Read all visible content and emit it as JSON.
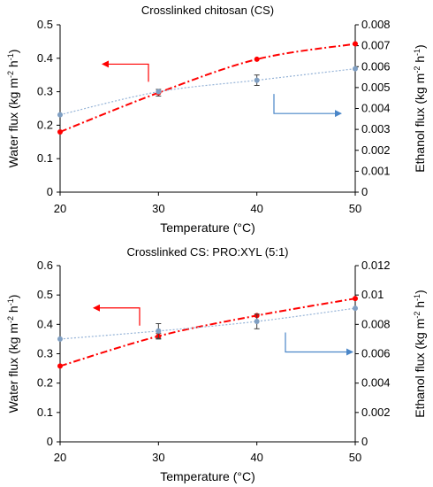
{
  "chart_data": [
    {
      "type": "line",
      "title": "Crosslinked chitosan (CS)",
      "xlabel": "Temperature (°C)",
      "ylabel": "Water flux (kg m⁻² h⁻¹)",
      "y2label": "Ethanol flux (kg m⁻² h⁻¹)",
      "x": [
        20,
        30,
        40,
        50
      ],
      "xlim": [
        20,
        50
      ],
      "xticks": [
        "20",
        "30",
        "40",
        "50"
      ],
      "ylim": [
        0,
        0.5
      ],
      "yticks": [
        "0",
        "0.1",
        "0.2",
        "0.3",
        "0.4",
        "0.5"
      ],
      "y2lim": [
        0,
        0.008
      ],
      "y2ticks": [
        "0",
        "0.001",
        "0.002",
        "0.003",
        "0.004",
        "0.005",
        "0.006",
        "0.007",
        "0.008"
      ],
      "grid": false,
      "series": [
        {
          "axis": "left",
          "color": "#ff0000",
          "style": "dash-dot",
          "values": [
            0.18,
            0.297,
            0.397,
            0.443
          ],
          "errors": [
            0,
            0.01,
            0,
            0
          ]
        },
        {
          "axis": "right",
          "color": "#95b3d7",
          "style": "dotted",
          "values": [
            0.0037,
            0.0048,
            0.00535,
            0.0059
          ],
          "errors": [
            0,
            0,
            0.00025,
            0
          ]
        }
      ],
      "arrows": [
        {
          "direction": "left",
          "color": "#ff0000",
          "points_to": "left"
        },
        {
          "direction": "right",
          "color": "#4a86c8",
          "points_to": "right"
        }
      ]
    },
    {
      "type": "line",
      "title": "Crosslinked CS: PRO:XYL (5:1)",
      "xlabel": "Temperature (°C)",
      "ylabel": "Water flux  (kg m⁻² h⁻¹)",
      "y2label": "Ethanol flux (kg m⁻² h⁻¹)",
      "x": [
        20,
        30,
        40,
        50
      ],
      "xlim": [
        20,
        50
      ],
      "xticks": [
        "20",
        "30",
        "40",
        "50"
      ],
      "ylim": [
        0,
        0.6
      ],
      "yticks": [
        "0",
        "0.1",
        "0.2",
        "0.3",
        "0.4",
        "0.5",
        "0.6"
      ],
      "y2lim": [
        0,
        0.012
      ],
      "y2ticks": [
        "0",
        "0.002",
        "0.004",
        "0.006",
        "0.008",
        "0.01",
        "0.012"
      ],
      "grid": false,
      "series": [
        {
          "axis": "left",
          "color": "#ff0000",
          "style": "dash-dot",
          "values": [
            0.258,
            0.36,
            0.43,
            0.488
          ],
          "errors": [
            0,
            0.01,
            0,
            0
          ]
        },
        {
          "axis": "right",
          "color": "#95b3d7",
          "style": "dotted",
          "values": [
            0.007,
            0.00755,
            0.0082,
            0.0091
          ],
          "errors": [
            0,
            0.0005,
            0.0005,
            0
          ]
        }
      ],
      "arrows": [
        {
          "direction": "left",
          "color": "#ff0000",
          "points_to": "left"
        },
        {
          "direction": "right",
          "color": "#4a86c8",
          "points_to": "right"
        }
      ]
    }
  ]
}
